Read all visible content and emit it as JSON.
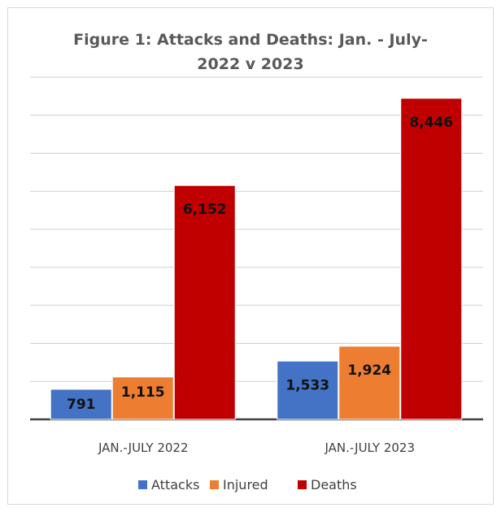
{
  "chart_data": {
    "type": "bar",
    "title_lines": [
      "Figure 1: Attacks and Deaths: Jan. - July-",
      "2022 v 2023"
    ],
    "categories": [
      "JAN.-JULY 2022",
      "JAN.-JULY 2023"
    ],
    "series": [
      {
        "name": "Attacks",
        "values": [
          791,
          1533
        ],
        "labels": [
          "791",
          "1,533"
        ],
        "color": "#4472c4"
      },
      {
        "name": "Injured",
        "values": [
          1115,
          1924
        ],
        "labels": [
          "1,115",
          "1,924"
        ],
        "color": "#ed7d31"
      },
      {
        "name": "Deaths",
        "values": [
          6152,
          8446
        ],
        "labels": [
          "6,152",
          "8,446"
        ],
        "color": "#c00000"
      }
    ],
    "ylim": [
      0,
      9000
    ],
    "gridlines": [
      0,
      1000,
      2000,
      3000,
      4000,
      5000,
      6000,
      7000,
      8000,
      9000
    ],
    "legend_position": "bottom",
    "grid": true
  }
}
